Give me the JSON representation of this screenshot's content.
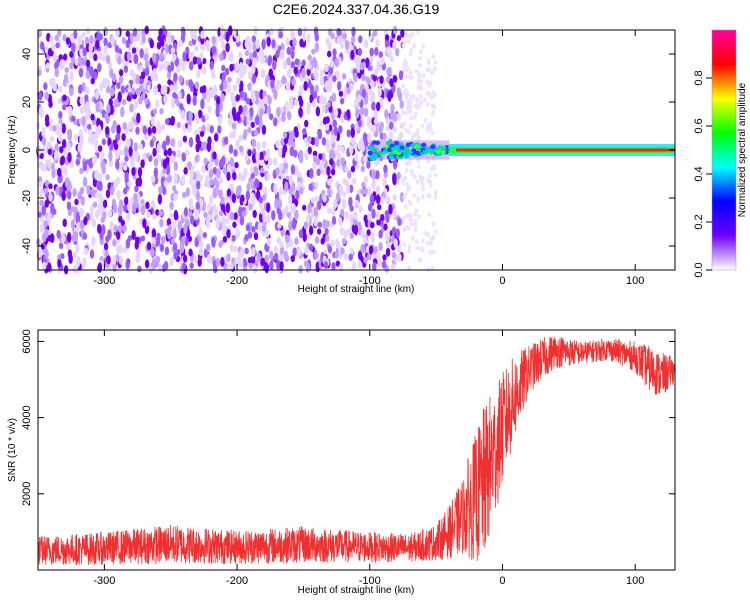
{
  "title": "C2E6.2024.337.04.36.G19",
  "chart_data": [
    {
      "type": "heatmap",
      "xlabel": "Height of straight line (km)",
      "ylabel": "Frequency (Hz)",
      "xlim": [
        -350,
        130
      ],
      "ylim": [
        -50,
        50
      ],
      "x_ticks": [
        -300,
        -200,
        -100,
        0,
        100
      ],
      "y_ticks": [
        -40,
        -20,
        0,
        20,
        40
      ],
      "noise_region_x": [
        -350,
        -75
      ],
      "signal_line": {
        "x_start": -70,
        "x_end": 130,
        "frequency": 0
      },
      "colorbar": {
        "label": "Normalized spectral amplitude",
        "range": [
          0,
          1
        ],
        "ticks": [
          "0.0",
          "0.2",
          "0.4",
          "0.6",
          "0.8"
        ],
        "colors": [
          "#ffffff",
          "#7000ff",
          "#0000ff",
          "#00ffff",
          "#00ff00",
          "#ffff00",
          "#ff0000",
          "#ff00a0"
        ]
      }
    },
    {
      "type": "line",
      "xlabel": "Height of straight line (km)",
      "ylabel": "SNR (10 * v/v)",
      "xlim": [
        -350,
        130
      ],
      "ylim": [
        0,
        6300
      ],
      "x_ticks": [
        -300,
        -200,
        -100,
        0,
        100
      ],
      "y_ticks": [
        2000,
        4000,
        6000
      ],
      "color": "#f03030",
      "envelope": {
        "x": [
          -350,
          -300,
          -250,
          -200,
          -150,
          -100,
          -70,
          -50,
          -40,
          -30,
          -25,
          -20,
          -15,
          -10,
          -5,
          0,
          10,
          20,
          30,
          40,
          60,
          80,
          100,
          110,
          120,
          130
        ],
        "low": [
          120,
          130,
          160,
          150,
          180,
          190,
          200,
          250,
          300,
          400,
          300,
          200,
          100,
          700,
          1500,
          2200,
          3500,
          4600,
          5000,
          5300,
          5400,
          5500,
          5200,
          4700,
          4500,
          4900
        ],
        "high": [
          900,
          1000,
          1200,
          1050,
          1150,
          1000,
          950,
          1200,
          1700,
          2400,
          3100,
          3600,
          4200,
          4600,
          4800,
          5200,
          5700,
          5900,
          6100,
          6200,
          6000,
          6100,
          6000,
          5900,
          5700,
          5600
        ]
      }
    }
  ]
}
